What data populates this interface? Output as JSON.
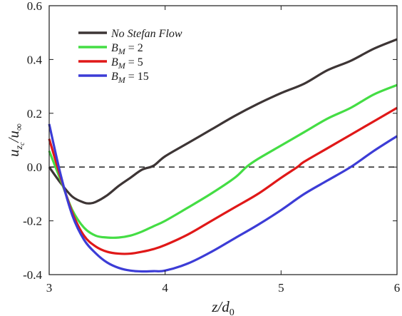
{
  "chart_data": {
    "type": "line",
    "title": "",
    "xlabel": "z/d₀",
    "ylabel": "u_zc/u∞",
    "xlim": [
      3,
      6
    ],
    "ylim": [
      -0.4,
      0.6
    ],
    "x_ticks": [
      3,
      4,
      5,
      6
    ],
    "y_ticks": [
      -0.4,
      -0.2,
      0.0,
      0.2,
      0.4,
      0.6
    ],
    "x_tick_labels": [
      "3",
      "4",
      "5",
      "6"
    ],
    "y_tick_labels": [
      "-0.4",
      "-0.2",
      "0.0",
      "0.2",
      "0.4",
      "0.6"
    ],
    "grid": false,
    "legend_position": "top-left",
    "reference_line": {
      "y": 0.0,
      "style": "dashed",
      "color": "#333333"
    },
    "series": [
      {
        "name": "No Stefan Flow",
        "color": "#3d3535",
        "points": [
          [
            3.0,
            0.0
          ],
          [
            3.1,
            -0.06
          ],
          [
            3.2,
            -0.11
          ],
          [
            3.3,
            -0.132
          ],
          [
            3.35,
            -0.135
          ],
          [
            3.4,
            -0.13
          ],
          [
            3.5,
            -0.105
          ],
          [
            3.6,
            -0.07
          ],
          [
            3.7,
            -0.04
          ],
          [
            3.8,
            -0.01
          ],
          [
            3.9,
            0.005
          ],
          [
            4.0,
            0.04
          ],
          [
            4.2,
            0.09
          ],
          [
            4.4,
            0.14
          ],
          [
            4.6,
            0.19
          ],
          [
            4.8,
            0.235
          ],
          [
            5.0,
            0.275
          ],
          [
            5.2,
            0.31
          ],
          [
            5.4,
            0.36
          ],
          [
            5.6,
            0.395
          ],
          [
            5.8,
            0.44
          ],
          [
            6.0,
            0.475
          ]
        ]
      },
      {
        "name": "B_M = 2",
        "color": "#44dd44",
        "points": [
          [
            3.0,
            0.06
          ],
          [
            3.1,
            -0.05
          ],
          [
            3.2,
            -0.16
          ],
          [
            3.3,
            -0.225
          ],
          [
            3.4,
            -0.255
          ],
          [
            3.5,
            -0.262
          ],
          [
            3.6,
            -0.262
          ],
          [
            3.7,
            -0.255
          ],
          [
            3.8,
            -0.24
          ],
          [
            3.9,
            -0.22
          ],
          [
            4.0,
            -0.2
          ],
          [
            4.2,
            -0.15
          ],
          [
            4.4,
            -0.098
          ],
          [
            4.6,
            -0.04
          ],
          [
            4.7,
            0.0
          ],
          [
            4.8,
            0.03
          ],
          [
            5.0,
            0.08
          ],
          [
            5.2,
            0.13
          ],
          [
            5.4,
            0.18
          ],
          [
            5.6,
            0.22
          ],
          [
            5.8,
            0.27
          ],
          [
            6.0,
            0.305
          ]
        ]
      },
      {
        "name": "B_M = 5",
        "color": "#e01818",
        "points": [
          [
            3.0,
            0.105
          ],
          [
            3.1,
            -0.04
          ],
          [
            3.2,
            -0.17
          ],
          [
            3.3,
            -0.255
          ],
          [
            3.4,
            -0.295
          ],
          [
            3.5,
            -0.315
          ],
          [
            3.6,
            -0.322
          ],
          [
            3.7,
            -0.322
          ],
          [
            3.8,
            -0.315
          ],
          [
            3.9,
            -0.305
          ],
          [
            4.0,
            -0.29
          ],
          [
            4.2,
            -0.25
          ],
          [
            4.4,
            -0.2
          ],
          [
            4.6,
            -0.15
          ],
          [
            4.8,
            -0.1
          ],
          [
            5.0,
            -0.04
          ],
          [
            5.14,
            0.0
          ],
          [
            5.2,
            0.02
          ],
          [
            5.4,
            0.07
          ],
          [
            5.6,
            0.12
          ],
          [
            5.8,
            0.17
          ],
          [
            6.0,
            0.22
          ]
        ]
      },
      {
        "name": "B_M = 15",
        "color": "#3c3cd6",
        "points": [
          [
            3.0,
            0.16
          ],
          [
            3.1,
            -0.03
          ],
          [
            3.2,
            -0.18
          ],
          [
            3.3,
            -0.27
          ],
          [
            3.4,
            -0.32
          ],
          [
            3.5,
            -0.355
          ],
          [
            3.6,
            -0.375
          ],
          [
            3.7,
            -0.385
          ],
          [
            3.8,
            -0.388
          ],
          [
            3.9,
            -0.387
          ],
          [
            4.0,
            -0.385
          ],
          [
            4.2,
            -0.358
          ],
          [
            4.4,
            -0.315
          ],
          [
            4.6,
            -0.265
          ],
          [
            4.8,
            -0.215
          ],
          [
            5.0,
            -0.16
          ],
          [
            5.2,
            -0.1
          ],
          [
            5.4,
            -0.05
          ],
          [
            5.6,
            0.0
          ],
          [
            5.8,
            0.06
          ],
          [
            6.0,
            0.115
          ]
        ]
      }
    ]
  }
}
